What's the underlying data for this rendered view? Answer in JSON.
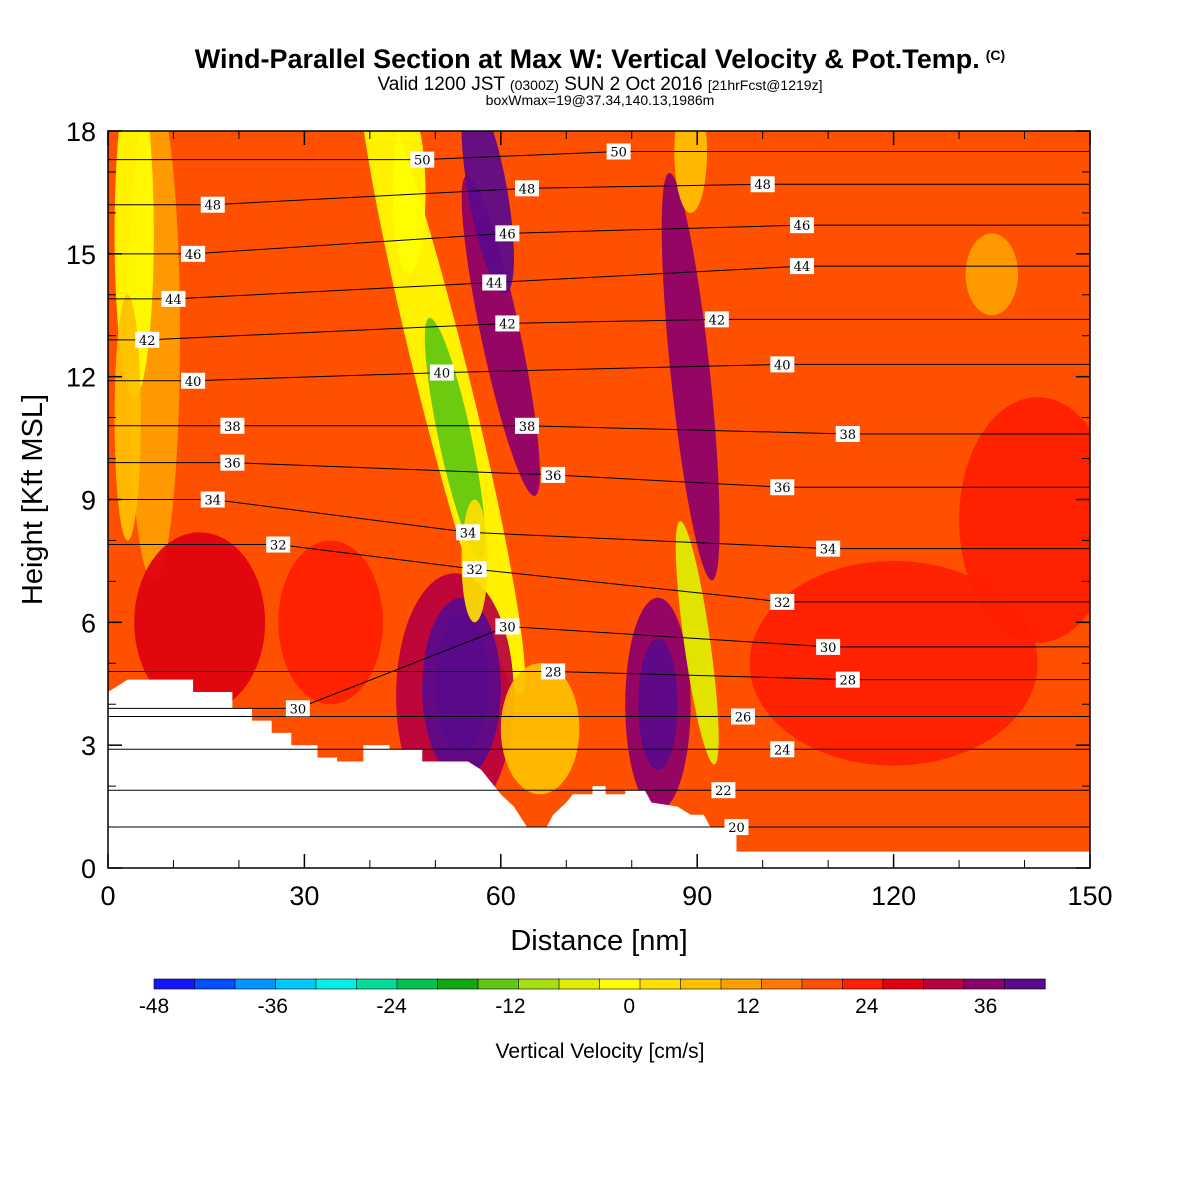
{
  "header": {
    "title": "Wind-Parallel Section at Max W: Vertical Velocity & Pot.Temp.",
    "copyright": "(C)",
    "valid_prefix": "Valid 1200 JST",
    "valid_utc": "(0300Z)",
    "valid_date": "SUN 2 Oct 2016",
    "forecast": "[21hrFcst@1219z]",
    "box_info": "boxWmax=19@37.34,140.13,1986m"
  },
  "chart_data": {
    "type": "heatmap",
    "xlabel": "Distance [nm]",
    "ylabel": "Height [Kft MSL]",
    "xlim": [
      0,
      150
    ],
    "ylim": [
      0,
      18
    ],
    "x_ticks": [
      0,
      30,
      60,
      90,
      120,
      150
    ],
    "y_ticks": [
      0,
      3,
      6,
      9,
      12,
      15,
      18
    ],
    "colorbar": {
      "label": "Vertical Velocity [cm/s]",
      "range": [
        -48,
        42
      ],
      "step": 3,
      "tick_values": [
        -48,
        -36,
        -24,
        -12,
        0,
        12,
        24,
        36
      ],
      "colors": [
        "#1414ff",
        "#0050ff",
        "#0096ff",
        "#00c8ff",
        "#00f0e8",
        "#00dc96",
        "#00c050",
        "#10a810",
        "#60c810",
        "#a8e010",
        "#e0f000",
        "#ffff00",
        "#ffe000",
        "#ffc000",
        "#ffa000",
        "#ff7800",
        "#ff5000",
        "#ff1e00",
        "#e00010",
        "#b80040",
        "#8c006c",
        "#5a0a8c"
      ]
    },
    "terrain_kft": [
      [
        0,
        4.3
      ],
      [
        3,
        4.6
      ],
      [
        13,
        4.6
      ],
      [
        13,
        4.3
      ],
      [
        19,
        4.3
      ],
      [
        19,
        3.9
      ],
      [
        22,
        3.9
      ],
      [
        22,
        3.6
      ],
      [
        25,
        3.6
      ],
      [
        25,
        3.3
      ],
      [
        28,
        3.3
      ],
      [
        28,
        3.0
      ],
      [
        32,
        3.0
      ],
      [
        32,
        2.7
      ],
      [
        35,
        2.7
      ],
      [
        35,
        2.6
      ],
      [
        39,
        2.6
      ],
      [
        39,
        3.0
      ],
      [
        43,
        3.0
      ],
      [
        43,
        2.9
      ],
      [
        48,
        2.9
      ],
      [
        48,
        2.6
      ],
      [
        55,
        2.6
      ],
      [
        57,
        2.4
      ],
      [
        60,
        1.8
      ],
      [
        62,
        1.5
      ],
      [
        64,
        1.0
      ],
      [
        67,
        1.0
      ],
      [
        68,
        1.3
      ],
      [
        70,
        1.6
      ],
      [
        71,
        1.8
      ],
      [
        74,
        1.8
      ],
      [
        74,
        2.0
      ],
      [
        76,
        2.0
      ],
      [
        76,
        1.8
      ],
      [
        79,
        1.8
      ],
      [
        79,
        1.9
      ],
      [
        82,
        1.9
      ],
      [
        83,
        1.6
      ],
      [
        87,
        1.5
      ],
      [
        89,
        1.3
      ],
      [
        91,
        1.3
      ],
      [
        92,
        1.0
      ],
      [
        94,
        1.0
      ],
      [
        96,
        0.8
      ],
      [
        96,
        0.4
      ],
      [
        99,
        0.4
      ]
    ],
    "w_features": [
      {
        "x": 4,
        "y": 15.5,
        "rx": 3,
        "ry": 4,
        "w": -15,
        "angle": 0
      },
      {
        "x": 3,
        "y": 11,
        "rx": 2,
        "ry": 3,
        "w": -9,
        "angle": 0
      },
      {
        "x": 7,
        "y": 13,
        "rx": 4,
        "ry": 6,
        "w": -5,
        "angle": 0
      },
      {
        "x": 51,
        "y": 12,
        "rx": 4,
        "ry": 8,
        "w": -14,
        "angle": -14
      },
      {
        "x": 53,
        "y": 10.5,
        "rx": 2.5,
        "ry": 3,
        "w": -24,
        "angle": -12
      },
      {
        "x": 46,
        "y": 16.5,
        "rx": 2.5,
        "ry": 2,
        "w": -15,
        "angle": 0
      },
      {
        "x": 56,
        "y": 7.5,
        "rx": 2,
        "ry": 1.5,
        "w": -12,
        "angle": 0
      },
      {
        "x": 58,
        "y": 16.5,
        "rx": 3,
        "ry": 2.5,
        "w": 21,
        "angle": -10
      },
      {
        "x": 60,
        "y": 13,
        "rx": 3,
        "ry": 4,
        "w": 12,
        "angle": -12
      },
      {
        "x": 54,
        "y": 4.5,
        "rx": 4,
        "ry": 1.7,
        "w": 36,
        "angle": 0
      },
      {
        "x": 54,
        "y": 4.4,
        "rx": 6,
        "ry": 2.2,
        "w": 24,
        "angle": 0
      },
      {
        "x": 53,
        "y": 4.2,
        "rx": 9,
        "ry": 3,
        "w": 10,
        "angle": 0
      },
      {
        "x": 84,
        "y": 4.0,
        "rx": 3,
        "ry": 1.6,
        "w": 27,
        "angle": 0
      },
      {
        "x": 84,
        "y": 4.0,
        "rx": 5,
        "ry": 2.6,
        "w": 14,
        "angle": 0
      },
      {
        "x": 90,
        "y": 5.5,
        "rx": 2,
        "ry": 3,
        "w": -16,
        "angle": -8
      },
      {
        "x": 89,
        "y": 12,
        "rx": 3,
        "ry": 5,
        "w": 14,
        "angle": -6
      },
      {
        "x": 89,
        "y": 17.5,
        "rx": 2.5,
        "ry": 1.5,
        "w": -7,
        "angle": 0
      },
      {
        "x": 66,
        "y": 3.4,
        "rx": 6,
        "ry": 1.6,
        "w": -8,
        "angle": 0
      },
      {
        "x": 14,
        "y": 6,
        "rx": 10,
        "ry": 2.2,
        "w": 7,
        "angle": 0
      },
      {
        "x": 34,
        "y": 6,
        "rx": 8,
        "ry": 2,
        "w": 5,
        "angle": 0
      },
      {
        "x": 142,
        "y": 8.5,
        "rx": 12,
        "ry": 3,
        "w": 4,
        "angle": 0
      },
      {
        "x": 135,
        "y": 14.5,
        "rx": 4,
        "ry": 1,
        "w": -6,
        "angle": 0
      },
      {
        "x": 120,
        "y": 5,
        "rx": 22,
        "ry": 2.5,
        "w": 3,
        "angle": 0
      }
    ],
    "isentrope_labels": [
      {
        "text": "50",
        "x": 48,
        "y": 17.3
      },
      {
        "text": "50",
        "x": 78,
        "y": 17.5
      },
      {
        "text": "48",
        "x": 16,
        "y": 16.2
      },
      {
        "text": "48",
        "x": 64,
        "y": 16.6
      },
      {
        "text": "48",
        "x": 100,
        "y": 16.7
      },
      {
        "text": "46",
        "x": 13,
        "y": 15.0
      },
      {
        "text": "46",
        "x": 61,
        "y": 15.5
      },
      {
        "text": "46",
        "x": 106,
        "y": 15.7
      },
      {
        "text": "44",
        "x": 10,
        "y": 13.9
      },
      {
        "text": "44",
        "x": 59,
        "y": 14.3
      },
      {
        "text": "44",
        "x": 106,
        "y": 14.7
      },
      {
        "text": "42",
        "x": 6,
        "y": 12.9
      },
      {
        "text": "42",
        "x": 61,
        "y": 13.3
      },
      {
        "text": "42",
        "x": 93,
        "y": 13.4
      },
      {
        "text": "40",
        "x": 13,
        "y": 11.9
      },
      {
        "text": "40",
        "x": 51,
        "y": 12.1
      },
      {
        "text": "40",
        "x": 103,
        "y": 12.3
      },
      {
        "text": "38",
        "x": 19,
        "y": 10.8
      },
      {
        "text": "38",
        "x": 64,
        "y": 10.8
      },
      {
        "text": "38",
        "x": 113,
        "y": 10.6
      },
      {
        "text": "36",
        "x": 19,
        "y": 9.9
      },
      {
        "text": "36",
        "x": 68,
        "y": 9.6
      },
      {
        "text": "36",
        "x": 103,
        "y": 9.3
      },
      {
        "text": "34",
        "x": 16,
        "y": 9.0
      },
      {
        "text": "34",
        "x": 55,
        "y": 8.2
      },
      {
        "text": "34",
        "x": 110,
        "y": 7.8
      },
      {
        "text": "32",
        "x": 26,
        "y": 7.9
      },
      {
        "text": "32",
        "x": 56,
        "y": 7.3
      },
      {
        "text": "32",
        "x": 103,
        "y": 6.5
      },
      {
        "text": "30",
        "x": 61,
        "y": 5.9
      },
      {
        "text": "30",
        "x": 110,
        "y": 5.4
      },
      {
        "text": "30",
        "x": 29,
        "y": 3.9
      },
      {
        "text": "28",
        "x": 68,
        "y": 4.8
      },
      {
        "text": "28",
        "x": 113,
        "y": 4.6
      },
      {
        "text": "26",
        "x": 97,
        "y": 3.7
      },
      {
        "text": "24",
        "x": 103,
        "y": 2.9
      },
      {
        "text": "22",
        "x": 94,
        "y": 1.9
      },
      {
        "text": "20",
        "x": 96,
        "y": 1.0
      }
    ]
  }
}
